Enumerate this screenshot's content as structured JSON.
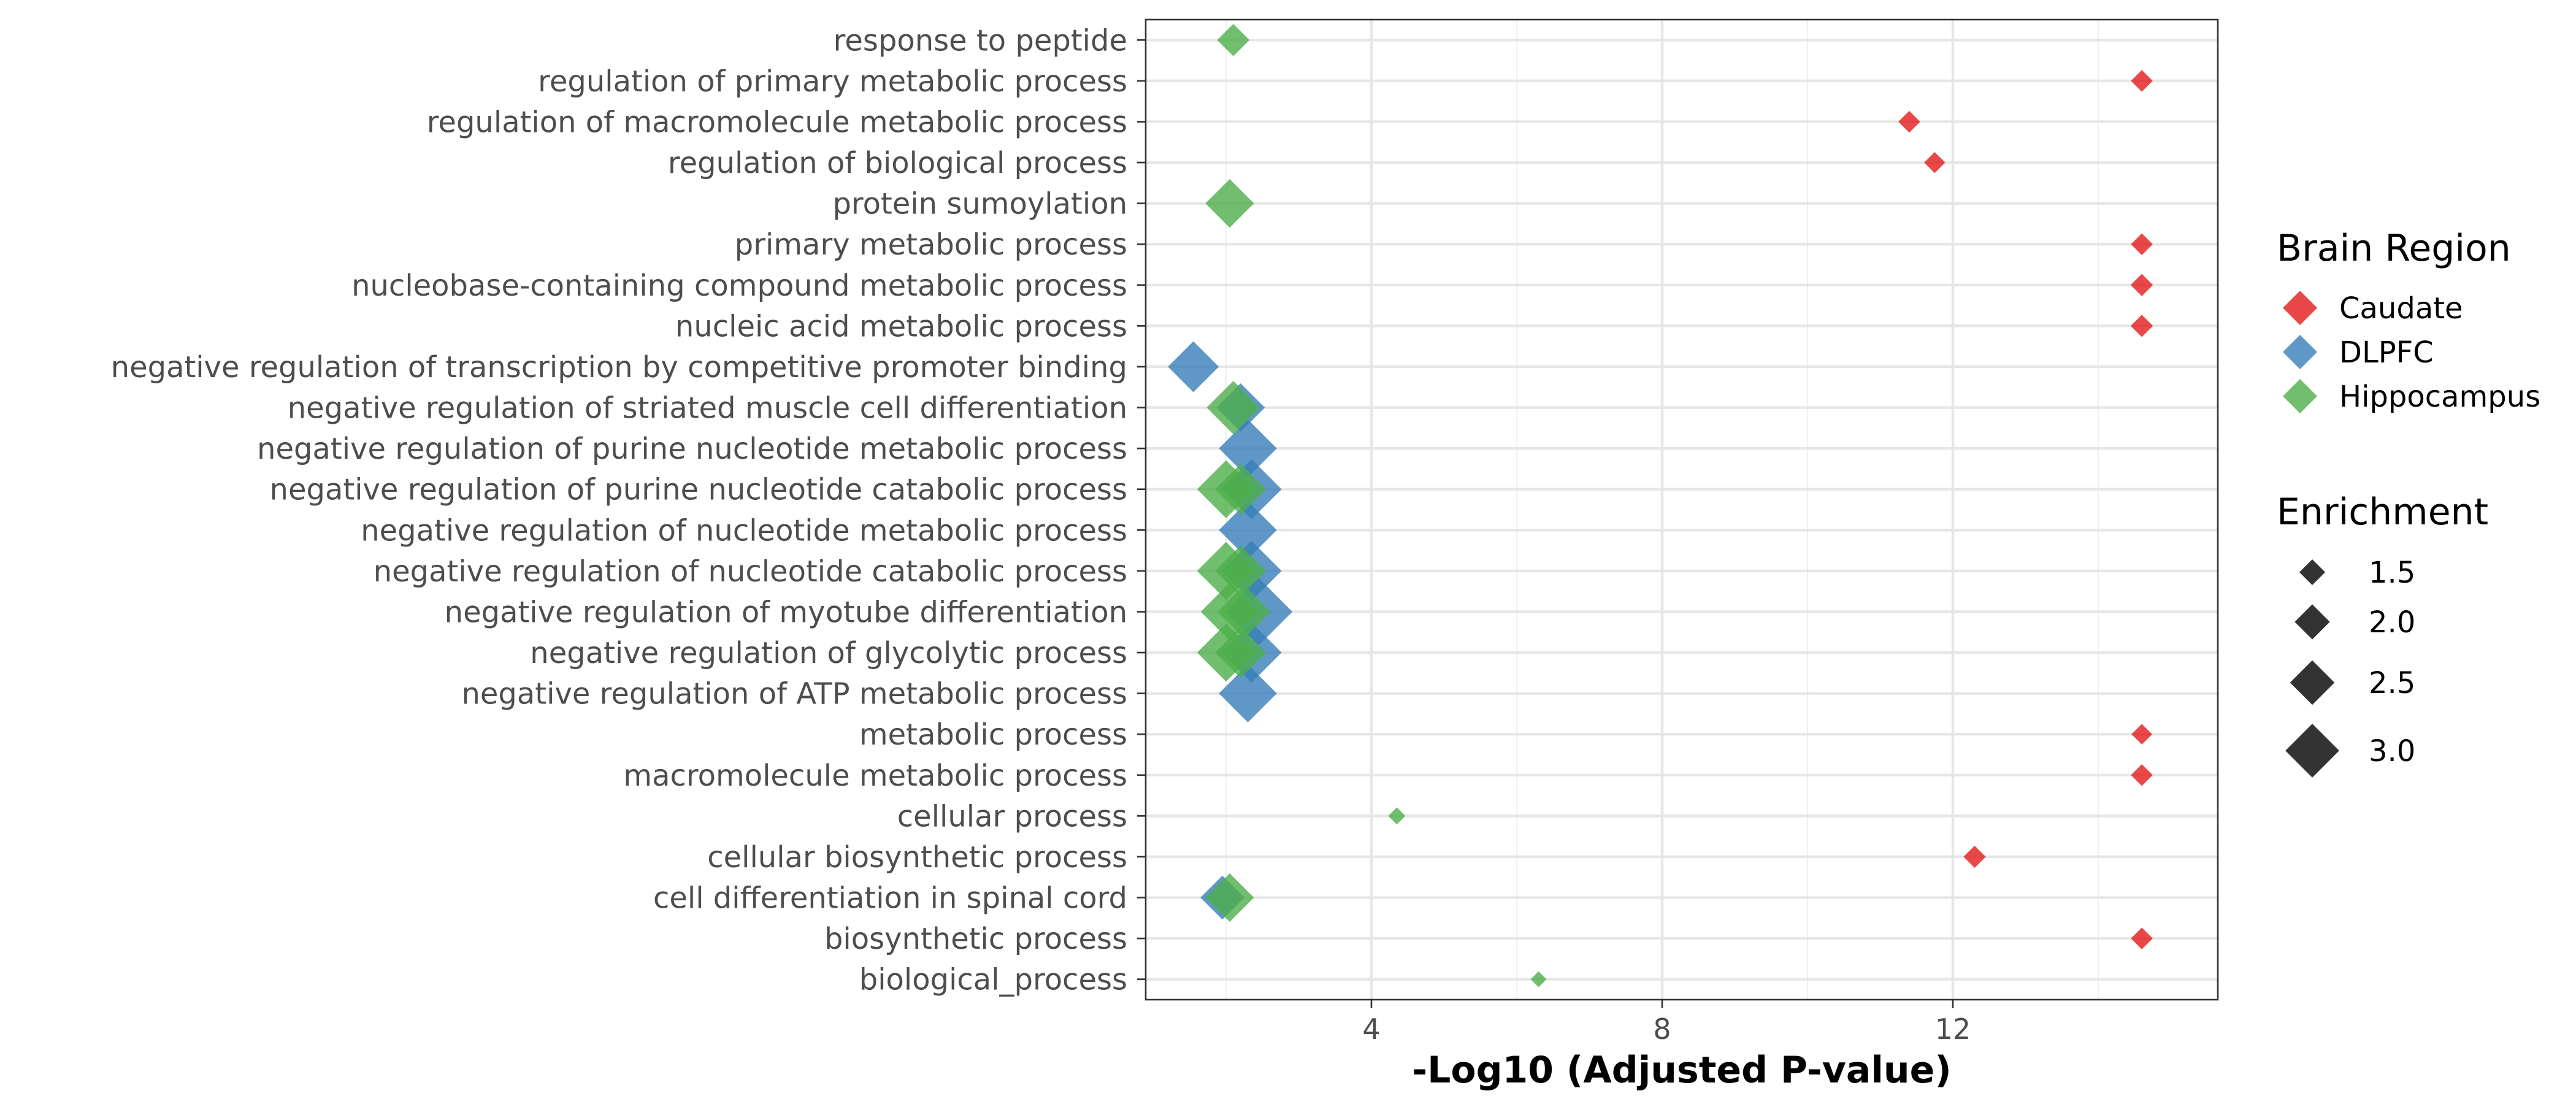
{
  "chart_data": {
    "type": "scatter",
    "xlabel": "-Log10 (Adjusted P-value)",
    "xlim": [
      0,
      15
    ],
    "x_ticks": [
      4,
      8,
      12
    ],
    "grid": true,
    "categories": [
      "biological_process",
      "biosynthetic process",
      "cell differentiation in spinal cord",
      "cellular biosynthetic process",
      "cellular process",
      "macromolecule metabolic process",
      "metabolic process",
      "negative regulation of ATP metabolic process",
      "negative regulation of glycolytic process",
      "negative regulation of myotube differentiation",
      "negative regulation of nucleotide catabolic process",
      "negative regulation of nucleotide metabolic process",
      "negative regulation of purine nucleotide catabolic process",
      "negative regulation of purine nucleotide metabolic process",
      "negative regulation of striated muscle cell differentiation",
      "negative regulation of transcription by competitive promoter binding",
      "nucleic acid metabolic process",
      "nucleobase-containing compound metabolic process",
      "primary metabolic process",
      "protein sumoylation",
      "regulation of biological process",
      "regulation of macromolecule metabolic process",
      "regulation of primary metabolic process",
      "response to peptide"
    ],
    "series": [
      {
        "name": "Caudate",
        "color": "#e41a1c",
        "points": [
          {
            "category": "regulation of primary metabolic process",
            "x": 14.6,
            "enrichment": 1.05
          },
          {
            "category": "regulation of macromolecule metabolic process",
            "x": 11.4,
            "enrichment": 1.05
          },
          {
            "category": "regulation of biological process",
            "x": 11.75,
            "enrichment": 1.02
          },
          {
            "category": "primary metabolic process",
            "x": 14.6,
            "enrichment": 1.05
          },
          {
            "category": "nucleobase-containing compound metabolic process",
            "x": 14.6,
            "enrichment": 1.07
          },
          {
            "category": "nucleic acid metabolic process",
            "x": 14.6,
            "enrichment": 1.07
          },
          {
            "category": "metabolic process",
            "x": 14.6,
            "enrichment": 1.0
          },
          {
            "category": "macromolecule metabolic process",
            "x": 14.6,
            "enrichment": 1.05
          },
          {
            "category": "cellular biosynthetic process",
            "x": 12.3,
            "enrichment": 1.07
          },
          {
            "category": "biosynthetic process",
            "x": 14.6,
            "enrichment": 1.05
          }
        ]
      },
      {
        "name": "DLPFC",
        "color": "#377eb8",
        "points": [
          {
            "category": "negative regulation of transcription by competitive promoter binding",
            "x": 1.55,
            "enrichment": 2.3
          },
          {
            "category": "negative regulation of striated muscle cell differentiation",
            "x": 2.2,
            "enrichment": 2.2
          },
          {
            "category": "negative regulation of purine nucleotide metabolic process",
            "x": 2.3,
            "enrichment": 2.6
          },
          {
            "category": "negative regulation of purine nucleotide catabolic process",
            "x": 2.35,
            "enrichment": 2.7
          },
          {
            "category": "negative regulation of nucleotide metabolic process",
            "x": 2.3,
            "enrichment": 2.6
          },
          {
            "category": "negative regulation of nucleotide catabolic process",
            "x": 2.35,
            "enrichment": 2.7
          },
          {
            "category": "negative regulation of myotube differentiation",
            "x": 2.45,
            "enrichment": 3.0
          },
          {
            "category": "negative regulation of glycolytic process",
            "x": 2.35,
            "enrichment": 2.7
          },
          {
            "category": "negative regulation of ATP metabolic process",
            "x": 2.3,
            "enrichment": 2.6
          },
          {
            "category": "cell differentiation in spinal cord",
            "x": 1.95,
            "enrichment": 2.0
          }
        ]
      },
      {
        "name": "Hippocampus",
        "color": "#4daf4a",
        "points": [
          {
            "category": "response to peptide",
            "x": 2.1,
            "enrichment": 1.5
          },
          {
            "category": "protein sumoylation",
            "x": 2.05,
            "enrichment": 2.2
          },
          {
            "category": "negative regulation of striated muscle cell differentiation",
            "x": 2.1,
            "enrichment": 2.4
          },
          {
            "category": "negative regulation of purine nucleotide catabolic process",
            "x": 2.0,
            "enrichment": 2.6
          },
          {
            "category": "negative regulation of purine nucleotide catabolic process",
            "x": 2.2,
            "enrichment": 2.3
          },
          {
            "category": "negative regulation of nucleotide catabolic process",
            "x": 2.0,
            "enrichment": 2.6
          },
          {
            "category": "negative regulation of nucleotide catabolic process",
            "x": 2.2,
            "enrichment": 2.3
          },
          {
            "category": "negative regulation of myotube differentiation",
            "x": 2.05,
            "enrichment": 2.6
          },
          {
            "category": "negative regulation of myotube differentiation",
            "x": 2.25,
            "enrichment": 2.4
          },
          {
            "category": "negative regulation of glycolytic process",
            "x": 2.0,
            "enrichment": 2.6
          },
          {
            "category": "negative regulation of glycolytic process",
            "x": 2.2,
            "enrichment": 2.3
          },
          {
            "category": "cellular process",
            "x": 4.35,
            "enrichment": 0.85
          },
          {
            "category": "cell differentiation in spinal cord",
            "x": 2.05,
            "enrichment": 2.2
          },
          {
            "category": "biological_process",
            "x": 6.3,
            "enrichment": 0.8
          }
        ]
      }
    ],
    "legend_color": {
      "title": "Brain Region",
      "entries": [
        {
          "label": "Caudate",
          "color": "#e41a1c"
        },
        {
          "label": "DLPFC",
          "color": "#377eb8"
        },
        {
          "label": "Hippocampus",
          "color": "#4daf4a"
        }
      ]
    },
    "legend_size": {
      "title": "Enrichment",
      "entries": [
        {
          "label": "1.5",
          "value": 1.5
        },
        {
          "label": "2.0",
          "value": 2.0
        },
        {
          "label": "2.5",
          "value": 2.5
        },
        {
          "label": "3.0",
          "value": 3.0
        }
      ]
    },
    "legend_position": "right"
  }
}
